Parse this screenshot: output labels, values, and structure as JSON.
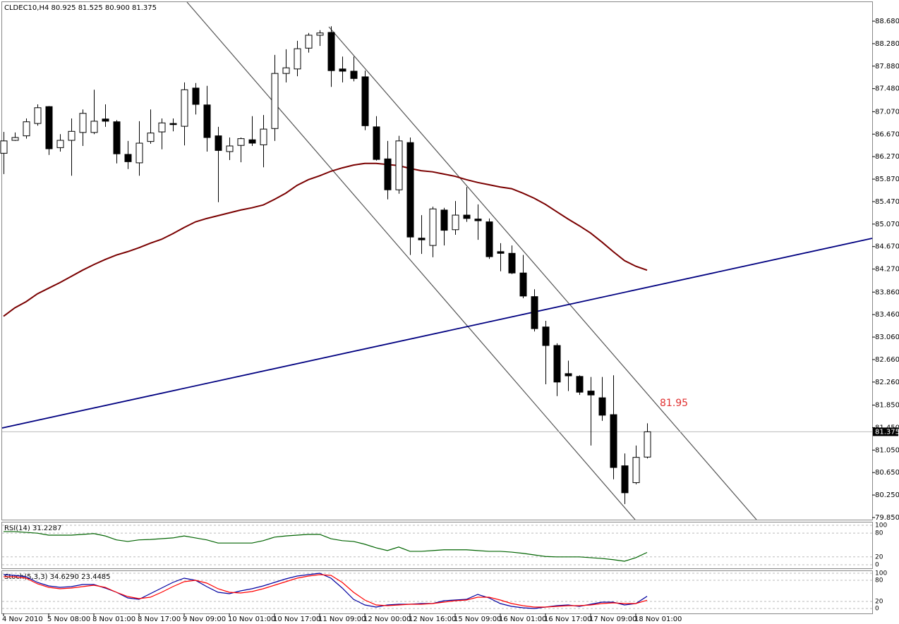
{
  "chart_data": [
    {
      "type": "candlestick",
      "title": "CLDEC10,H4  80.925 81.525 80.900 81.375",
      "categories": [
        "4 Nov 2010",
        null,
        null,
        null,
        "5 Nov 08:00",
        null,
        null,
        null,
        "8 Nov 01:00",
        null,
        null,
        null,
        "8 Nov 17:00",
        null,
        null,
        null,
        "9 Nov 09:00",
        null,
        null,
        null,
        "10 Nov 01:00",
        null,
        null,
        null,
        "10 Nov 17:00",
        null,
        null,
        null,
        "11 Nov 09:00",
        null,
        null,
        null,
        "12 Nov 00:00",
        null,
        null,
        null,
        "12 Nov 16:00",
        null,
        null,
        null,
        "15 Nov 09:00",
        null,
        null,
        null,
        "16 Nov 01:00",
        null,
        null,
        null,
        "16 Nov 17:00",
        null,
        null,
        null,
        "17 Nov 09:00",
        null,
        null,
        null,
        "18 Nov 01:00",
        null
      ],
      "open": [
        86.33,
        86.56,
        86.64,
        86.86,
        87.16,
        86.43,
        86.56,
        86.7,
        86.7,
        86.94,
        86.89,
        86.31,
        86.16,
        86.54,
        86.71,
        86.86,
        86.81,
        87.49,
        87.19,
        86.64,
        86.36,
        86.47,
        86.57,
        86.48,
        86.77,
        87.75,
        87.83,
        88.2,
        88.43,
        88.48,
        87.83,
        87.79,
        87.69,
        86.8,
        86.23,
        85.68,
        86.52,
        84.82,
        84.69,
        85.32,
        84.97,
        85.23,
        85.16,
        85.11,
        84.58,
        84.55,
        84.2,
        83.78,
        83.24,
        82.91,
        82.41,
        82.36,
        82.1,
        81.98,
        81.68,
        80.77,
        80.47,
        80.925
      ],
      "high": [
        86.71,
        86.7,
        86.95,
        87.2,
        87.17,
        86.67,
        86.95,
        87.11,
        87.46,
        87.2,
        86.92,
        86.55,
        86.9,
        87.11,
        86.95,
        86.95,
        87.59,
        87.58,
        87.53,
        86.8,
        86.61,
        86.61,
        86.99,
        87.01,
        88.08,
        88.18,
        88.33,
        88.47,
        88.52,
        88.59,
        88.05,
        88.05,
        87.8,
        86.99,
        86.55,
        86.64,
        86.61,
        85.23,
        85.38,
        85.36,
        85.48,
        85.73,
        85.42,
        85.17,
        84.73,
        84.69,
        84.52,
        83.91,
        83.35,
        82.95,
        82.64,
        82.38,
        82.35,
        82.35,
        82.38,
        80.99,
        81.13,
        81.525
      ],
      "low": [
        85.96,
        86.55,
        86.59,
        86.82,
        86.3,
        86.36,
        85.93,
        86.46,
        86.67,
        86.8,
        86.15,
        86.05,
        85.93,
        86.5,
        86.4,
        86.72,
        86.47,
        87.02,
        86.36,
        85.46,
        86.21,
        86.17,
        86.46,
        86.08,
        86.55,
        87.59,
        87.7,
        88.12,
        88.24,
        87.51,
        87.59,
        87.61,
        86.74,
        86.2,
        85.51,
        85.61,
        84.52,
        84.54,
        84.48,
        84.69,
        84.88,
        85.11,
        84.79,
        84.45,
        84.23,
        84.18,
        83.75,
        83.16,
        82.22,
        82.01,
        82.1,
        82.03,
        81.13,
        81.57,
        80.53,
        80.09,
        80.44,
        80.9
      ],
      "close": [
        86.55,
        86.61,
        86.89,
        87.14,
        86.41,
        86.56,
        86.72,
        87.04,
        86.9,
        86.9,
        86.32,
        86.18,
        86.51,
        86.69,
        86.87,
        86.84,
        87.46,
        87.2,
        86.61,
        86.38,
        86.46,
        86.59,
        86.51,
        86.76,
        87.75,
        87.85,
        88.19,
        88.43,
        88.47,
        87.8,
        87.79,
        87.66,
        86.82,
        86.22,
        85.68,
        86.55,
        84.84,
        84.79,
        85.34,
        84.96,
        85.23,
        85.17,
        85.13,
        84.49,
        84.55,
        84.2,
        83.79,
        83.21,
        82.91,
        82.26,
        82.37,
        82.08,
        82.03,
        81.67,
        80.74,
        80.29,
        80.92,
        81.375
      ],
      "ma_values": [
        83.43,
        83.58,
        83.69,
        83.83,
        83.93,
        84.03,
        84.14,
        84.25,
        84.35,
        84.44,
        84.52,
        84.58,
        84.65,
        84.73,
        84.8,
        84.9,
        85.01,
        85.11,
        85.17,
        85.22,
        85.27,
        85.32,
        85.36,
        85.41,
        85.51,
        85.62,
        85.76,
        85.86,
        85.93,
        86.01,
        86.07,
        86.12,
        86.15,
        86.15,
        86.13,
        86.11,
        86.06,
        86.02,
        86.0,
        85.96,
        85.92,
        85.86,
        85.81,
        85.77,
        85.73,
        85.7,
        85.62,
        85.53,
        85.42,
        85.29,
        85.16,
        85.04,
        84.91,
        84.75,
        84.58,
        84.42,
        84.32,
        84.25
      ],
      "ma_color": "#7a0000",
      "last_price_label": "81.375",
      "annotation": "81.95",
      "ylim": [
        79.812,
        89.019
      ],
      "yticks": [
        {
          "value": 88.68,
          "label": "88.680"
        },
        {
          "value": 88.28,
          "label": "88.280"
        },
        {
          "value": 87.88,
          "label": "87.880"
        },
        {
          "value": 87.48,
          "label": "87.480"
        },
        {
          "value": 87.07,
          "label": "87.070"
        },
        {
          "value": 86.67,
          "label": "86.670"
        },
        {
          "value": 86.27,
          "label": "86.270"
        },
        {
          "value": 85.87,
          "label": "85.870"
        },
        {
          "value": 85.47,
          "label": "85.470"
        },
        {
          "value": 85.07,
          "label": "85.070"
        },
        {
          "value": 84.67,
          "label": "84.670"
        },
        {
          "value": 84.27,
          "label": "84.270"
        },
        {
          "value": 83.86,
          "label": "83.860"
        },
        {
          "value": 83.46,
          "label": "83.460"
        },
        {
          "value": 83.06,
          "label": "83.060"
        },
        {
          "value": 82.66,
          "label": "82.660"
        },
        {
          "value": 82.26,
          "label": "82.260"
        },
        {
          "value": 81.85,
          "label": "81.850"
        },
        {
          "value": 81.45,
          "label": "81.450"
        },
        {
          "value": 81.05,
          "label": "81.050"
        },
        {
          "value": 80.65,
          "label": "80.650"
        },
        {
          "value": 80.25,
          "label": "80.250"
        },
        {
          "value": 79.85,
          "label": "79.850"
        }
      ]
    },
    {
      "type": "line",
      "title": "RSI(14) 31.2287",
      "series": [
        {
          "color": "#006400",
          "values": [
            84,
            84,
            82,
            80,
            75,
            75,
            75,
            77,
            79,
            73,
            63,
            59,
            63,
            64,
            66,
            68,
            73,
            68,
            63,
            55,
            55,
            55,
            55,
            61,
            70,
            73,
            75,
            77,
            77,
            66,
            61,
            59,
            52,
            43,
            36,
            45,
            34,
            34,
            36,
            38,
            38,
            38,
            36,
            34,
            34,
            32,
            29,
            25,
            21,
            20,
            20,
            20,
            18,
            16,
            13,
            9,
            18,
            31.2287
          ]
        }
      ],
      "ylim": [
        -8.9,
        107.1
      ],
      "yticks": [
        100,
        80,
        20,
        0
      ]
    },
    {
      "type": "line",
      "title": "Stoch(5,3,3) 34.6290 23.4485",
      "series": [
        {
          "color": "#0000a0",
          "values": [
            96,
            94,
            90,
            74,
            64,
            60,
            62,
            68,
            68,
            58,
            46,
            30,
            26,
            42,
            58,
            74,
            86,
            80,
            62,
            46,
            42,
            50,
            56,
            64,
            74,
            84,
            92,
            96,
            100,
            86,
            58,
            26,
            10,
            4,
            10,
            12,
            12,
            14,
            14,
            22,
            24,
            26,
            40,
            30,
            14,
            6,
            2,
            0,
            4,
            8,
            10,
            6,
            12,
            18,
            18,
            10,
            14,
            34.629
          ]
        },
        {
          "color": "#ff0000",
          "values": [
            90,
            90,
            86,
            70,
            60,
            56,
            58,
            62,
            66,
            60,
            46,
            34,
            28,
            32,
            46,
            62,
            76,
            80,
            72,
            56,
            46,
            44,
            48,
            56,
            66,
            76,
            86,
            92,
            96,
            94,
            74,
            46,
            24,
            10,
            8,
            10,
            12,
            12,
            14,
            18,
            22,
            24,
            32,
            32,
            24,
            14,
            8,
            4,
            4,
            6,
            8,
            8,
            10,
            14,
            16,
            14,
            14,
            23.4485
          ]
        }
      ],
      "ylim": [
        -14,
        106
      ],
      "yticks": [
        100,
        80,
        20,
        0
      ]
    }
  ]
}
